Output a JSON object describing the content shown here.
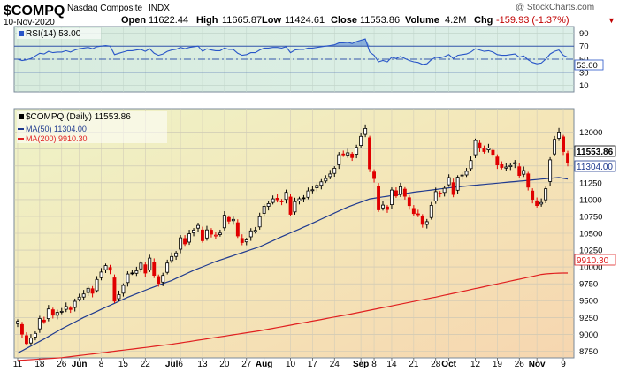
{
  "header": {
    "symbol": "$COMPQ",
    "name": "Nasdaq Composite",
    "exchange": "INDX",
    "date": "10-Nov-2020",
    "open_label": "Open",
    "open": "11622.44",
    "high_label": "High",
    "high": "11665.87",
    "low_label": "Low",
    "low": "11424.61",
    "close_label": "Close",
    "close": "11553.86",
    "volume_label": "Volume",
    "volume": "4.2M",
    "chg_label": "Chg",
    "chg": "-159.93 (-1.37%)",
    "chg_arrow": "▼",
    "brand": "@ StockCharts.com"
  },
  "rsi_panel": {
    "legend": "RSI(14) 53.00",
    "last_value_label": "53.00",
    "ticks": [
      90,
      70,
      50,
      30,
      10
    ],
    "ylim": [
      0,
      100
    ]
  },
  "price_panel": {
    "legend_main": "$COMPQ (Daily) 11553.86",
    "legend_ma50": "MA(50) 11304.00",
    "legend_ma200": "MA(200) 9910.30",
    "close_tag": "11553.86",
    "ma50_tag": "11304.00",
    "ma200_tag": "9910.30",
    "ticks": [
      12000,
      11750,
      11500,
      11250,
      11000,
      10750,
      10500,
      10250,
      10000,
      9750,
      9500,
      9250,
      9000,
      8750
    ],
    "ylim": [
      8650,
      12350
    ]
  },
  "x_axis": {
    "labels": [
      {
        "text": "11",
        "idx": 0
      },
      {
        "text": "18",
        "idx": 5
      },
      {
        "text": "26",
        "idx": 10
      },
      {
        "text": "Jun",
        "idx": 14
      },
      {
        "text": "8",
        "idx": 19
      },
      {
        "text": "15",
        "idx": 24
      },
      {
        "text": "22",
        "idx": 29
      },
      {
        "text": "Jul",
        "idx": 35
      },
      {
        "text": "6",
        "idx": 37
      },
      {
        "text": "13",
        "idx": 42
      },
      {
        "text": "20",
        "idx": 47
      },
      {
        "text": "27",
        "idx": 52
      },
      {
        "text": "Aug",
        "idx": 56
      },
      {
        "text": "10",
        "idx": 62
      },
      {
        "text": "17",
        "idx": 67
      },
      {
        "text": "24",
        "idx": 72
      },
      {
        "text": "Sep",
        "idx": 78
      },
      {
        "text": "8",
        "idx": 81
      },
      {
        "text": "14",
        "idx": 85
      },
      {
        "text": "21",
        "idx": 90
      },
      {
        "text": "28",
        "idx": 95
      },
      {
        "text": "Oct",
        "idx": 98
      },
      {
        "text": "12",
        "idx": 104
      },
      {
        "text": "19",
        "idx": 109
      },
      {
        "text": "26",
        "idx": 114
      },
      {
        "text": "Nov",
        "idx": 118
      },
      {
        "text": "9",
        "idx": 124
      }
    ]
  },
  "colors": {
    "up": "#000000",
    "down": "#e00000",
    "ma50": "#1f3a8f",
    "ma200": "#e02020",
    "rsi": "#2855c8",
    "header_red": "#c00000"
  },
  "chart_data": {
    "type": "candlestick",
    "title": "$COMPQ Nasdaq Composite INDX",
    "x_start": "2020-05-11",
    "x_end": "2020-11-10",
    "series": [
      {
        "name": "$COMPQ (Daily)",
        "close": [
          9192,
          9002,
          8863,
          8943,
          9014,
          9234,
          9185,
          9375,
          9284,
          9324,
          9340,
          9412,
          9368,
          9490,
          9552,
          9598,
          9682,
          9609,
          9814,
          9924,
          10020,
          9953,
          9493,
          9588,
          9726,
          9895,
          9910,
          9943,
          10056,
          9909,
          10131,
          9875,
          9757,
          9874,
          10058,
          10155,
          10207,
          10433,
          10343,
          10492,
          10547,
          10617,
          10390,
          10550,
          10488,
          10473,
          10503,
          10768,
          10680,
          10706,
          10461,
          10363,
          10402,
          10536,
          10543,
          10745,
          10902,
          10941,
          11011,
          10998,
          10968,
          11108,
          10782,
          10968,
          11012,
          11019,
          11129,
          11146,
          11211,
          11264,
          11312,
          11380,
          11466,
          11666,
          11665,
          11695,
          11625,
          11775,
          11939,
          12056,
          11458,
          11313,
          10847,
          10919,
          10853,
          11141,
          11056,
          11190,
          11050,
          10910,
          10793,
          10778,
          10633,
          10672,
          10914,
          11118,
          11085,
          11168,
          11326,
          11075,
          11332,
          11364,
          11420,
          11580,
          11876,
          11768,
          11713,
          11768,
          11671,
          11516,
          11478,
          11484,
          11506,
          11548,
          11358,
          11431,
          11185,
          11004,
          10912,
          10957,
          11161,
          11590,
          11895,
          12004,
          11713,
          11554
        ]
      },
      {
        "name": "MA(50)",
        "values": [
          8720,
          8755,
          8790,
          8825,
          8860,
          8895,
          8930,
          8968,
          9005,
          9043,
          9080,
          9114,
          9148,
          9182,
          9216,
          9250,
          9280,
          9310,
          9340,
          9370,
          9400,
          9430,
          9460,
          9490,
          9520,
          9550,
          9576,
          9602,
          9628,
          9654,
          9680,
          9704,
          9728,
          9752,
          9776,
          9800,
          9830,
          9860,
          9890,
          9920,
          9950,
          9976,
          10002,
          10028,
          10054,
          10080,
          10102,
          10124,
          10146,
          10168,
          10190,
          10212,
          10234,
          10256,
          10278,
          10300,
          10330,
          10360,
          10390,
          10420,
          10450,
          10478,
          10506,
          10534,
          10562,
          10590,
          10620,
          10650,
          10680,
          10710,
          10740,
          10770,
          10800,
          10830,
          10860,
          10890,
          10914,
          10938,
          10962,
          10986,
          11010,
          11020,
          11030,
          11040,
          11050,
          11060,
          11070,
          11080,
          11090,
          11100,
          11110,
          11118,
          11126,
          11134,
          11142,
          11150,
          11158,
          11166,
          11174,
          11182,
          11190,
          11196,
          11202,
          11208,
          11214,
          11220,
          11226,
          11232,
          11238,
          11244,
          11250,
          11256,
          11262,
          11268,
          11274,
          11280,
          11286,
          11292,
          11298,
          11304,
          11310,
          11316,
          11322,
          11328,
          11316,
          11304
        ]
      },
      {
        "name": "MA(200)",
        "values": [
          8612,
          8616,
          8620,
          8624,
          8628,
          8632,
          8636,
          8640,
          8644,
          8648,
          8652,
          8660,
          8668,
          8676,
          8684,
          8692,
          8700,
          8708,
          8716,
          8724,
          8732,
          8740,
          8748,
          8756,
          8764,
          8772,
          8780,
          8788,
          8796,
          8804,
          8812,
          8820,
          8828,
          8836,
          8844,
          8852,
          8862,
          8872,
          8882,
          8892,
          8902,
          8912,
          8922,
          8932,
          8942,
          8952,
          8962,
          8972,
          8982,
          8992,
          9002,
          9012,
          9022,
          9032,
          9042,
          9052,
          9064,
          9076,
          9088,
          9100,
          9112,
          9124,
          9136,
          9148,
          9160,
          9172,
          9184,
          9196,
          9208,
          9220,
          9232,
          9244,
          9256,
          9268,
          9280,
          9292,
          9305,
          9318,
          9331,
          9344,
          9357,
          9370,
          9383,
          9396,
          9409,
          9422,
          9435,
          9448,
          9461,
          9474,
          9487,
          9500,
          9513,
          9526,
          9539,
          9552,
          9566,
          9580,
          9594,
          9608,
          9622,
          9636,
          9650,
          9664,
          9678,
          9692,
          9706,
          9720,
          9734,
          9748,
          9762,
          9776,
          9790,
          9804,
          9818,
          9832,
          9846,
          9860,
          9874,
          9888,
          9896,
          9902,
          9906,
          9908,
          9909,
          9910
        ]
      },
      {
        "name": "RSI(14)",
        "values": [
          50,
          48,
          49,
          51,
          55,
          59,
          58,
          62,
          60,
          61,
          61,
          63,
          61,
          64,
          66,
          67,
          68,
          66,
          69,
          70,
          71,
          70,
          57,
          59,
          61,
          63,
          63,
          64,
          65,
          62,
          66,
          59,
          56,
          58,
          62,
          64,
          65,
          68,
          66,
          68,
          69,
          70,
          62,
          66,
          64,
          63,
          63,
          67,
          65,
          65,
          59,
          56,
          57,
          60,
          60,
          64,
          67,
          67,
          68,
          68,
          67,
          69,
          60,
          64,
          65,
          65,
          67,
          67,
          68,
          69,
          70,
          71,
          72,
          75,
          75,
          76,
          74,
          77,
          79,
          81,
          61,
          56,
          46,
          48,
          46,
          53,
          51,
          54,
          51,
          48,
          46,
          45,
          42,
          43,
          49,
          53,
          52,
          54,
          57,
          51,
          56,
          57,
          58,
          61,
          66,
          64,
          62,
          63,
          61,
          57,
          56,
          56,
          57,
          58,
          53,
          55,
          49,
          45,
          43,
          44,
          50,
          58,
          62,
          64,
          56,
          53
        ]
      }
    ],
    "rsi_levels": [
      70,
      30
    ],
    "rsi_ylim": [
      0,
      100
    ],
    "price_ylim": [
      8650,
      12350
    ],
    "y_ticks_price": [
      12000,
      11750,
      11500,
      11250,
      11000,
      10750,
      10500,
      10250,
      10000,
      9750,
      9500,
      9250,
      9000,
      8750
    ],
    "y_ticks_rsi": [
      90,
      70,
      50,
      30,
      10
    ],
    "legend": [
      "$COMPQ (Daily) 11553.86",
      "MA(50) 11304.00",
      "MA(200) 9910.30"
    ],
    "grid": true
  }
}
